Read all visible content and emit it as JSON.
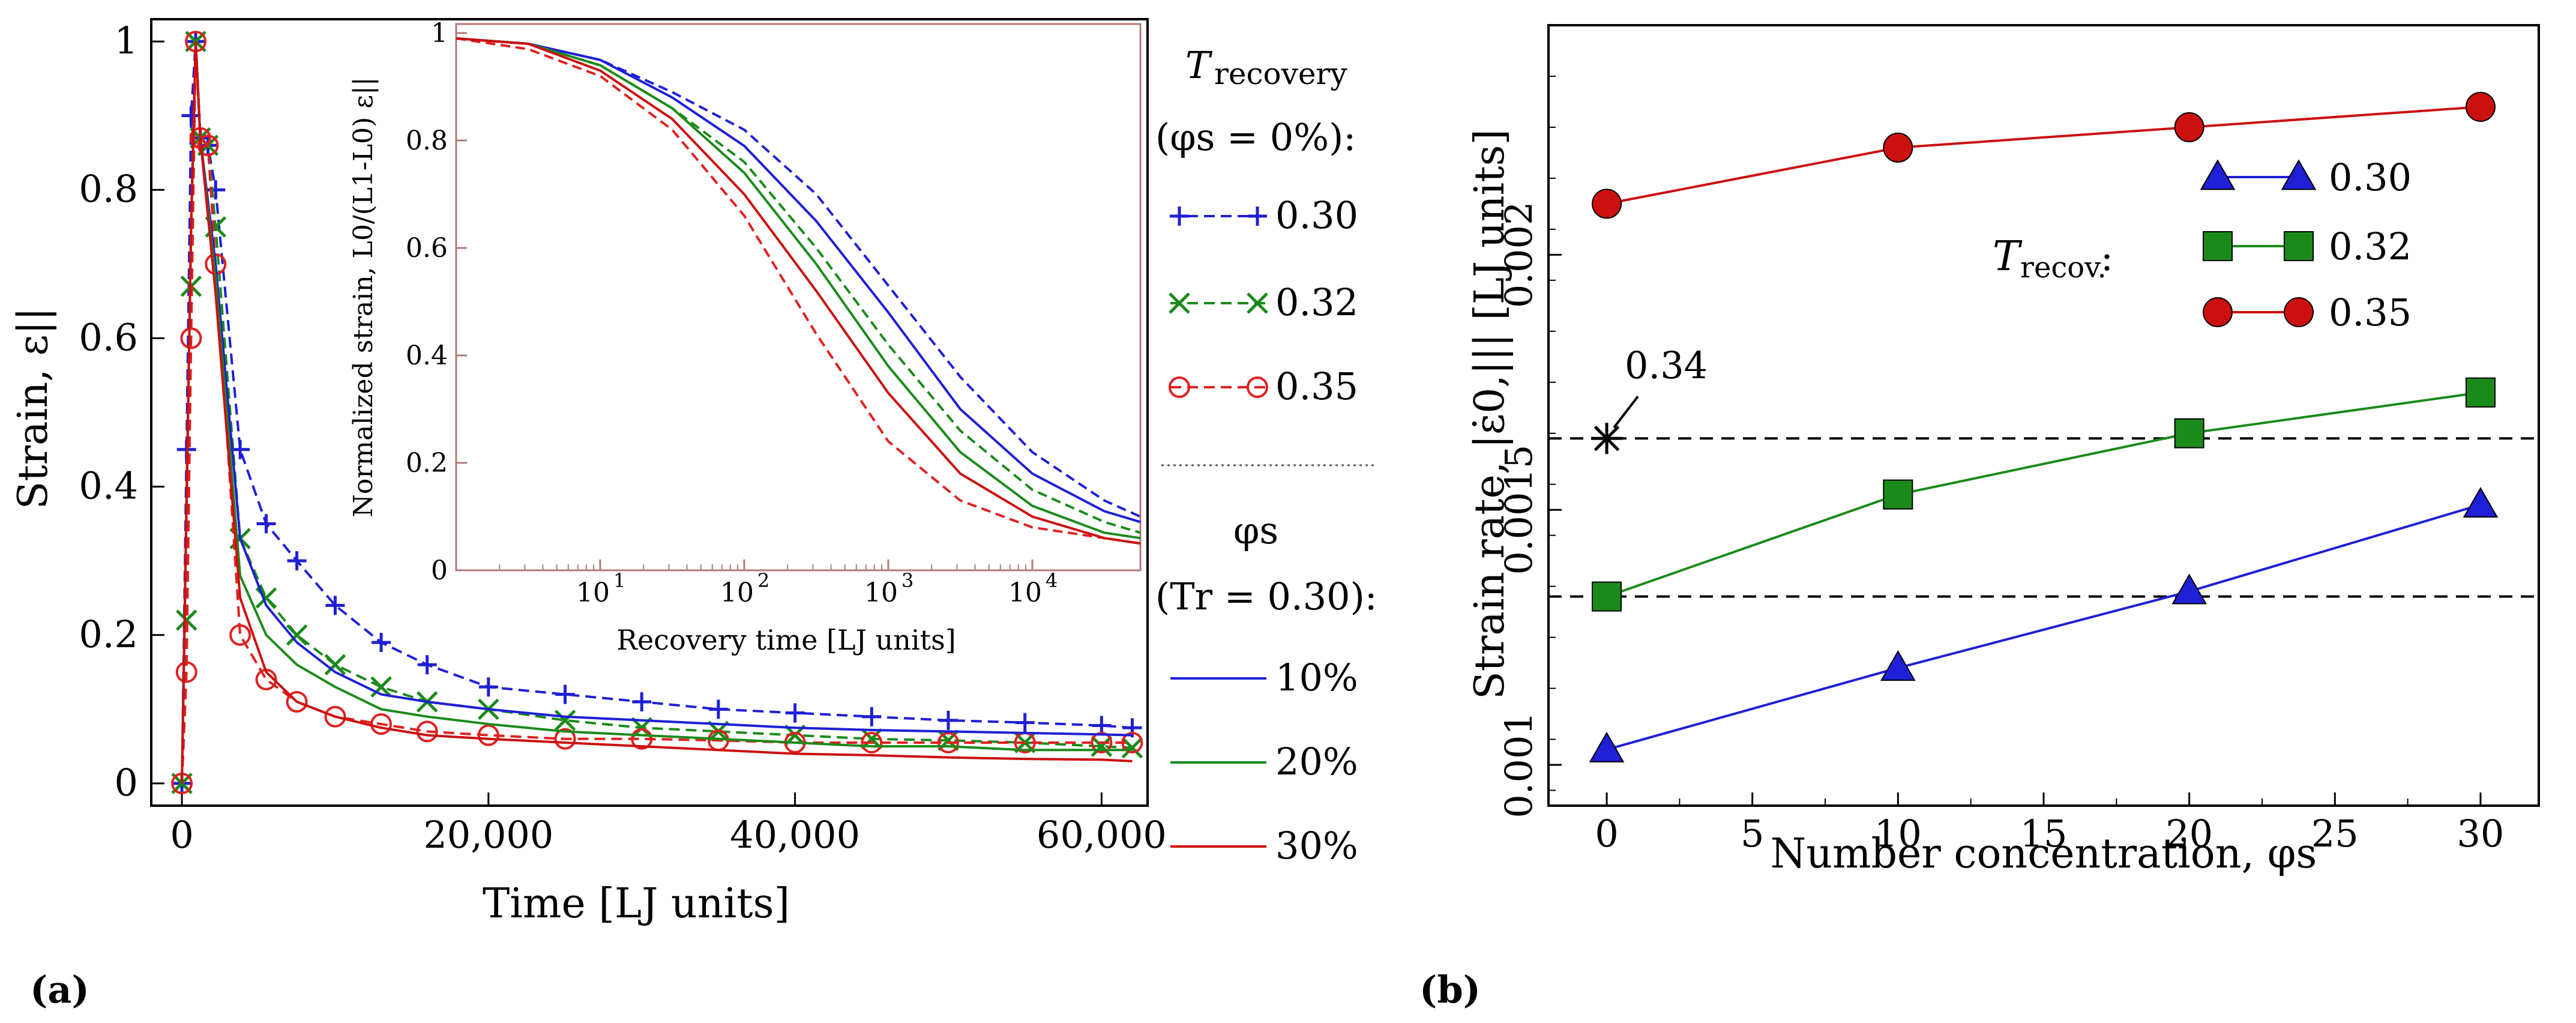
{
  "figure": {
    "panel_a_label": "(a)",
    "panel_b_label": "(b)"
  },
  "chart_data": [
    {
      "id": "panel-a-main",
      "type": "line",
      "xlabel": "Time [LJ units]",
      "ylabel": "Strain, ε||",
      "xlim": [
        -2000,
        63000
      ],
      "ylim": [
        -0.03,
        1.03
      ],
      "xticks": [
        0,
        20000,
        40000,
        60000
      ],
      "xtick_labels": [
        "0",
        "20,000",
        "40,000",
        "60,000"
      ],
      "yticks": [
        0,
        0.2,
        0.4,
        0.6,
        0.8,
        1
      ],
      "ytick_labels": [
        "0",
        "0.2",
        "0.4",
        "0.6",
        "0.8",
        "1"
      ],
      "legend": {
        "title_T": "T",
        "title_T_sub": "recovery",
        "title_phi_line": "(φs = 0%):",
        "phi_title": "φs",
        "phi_sub_line": "(Tr = 0.30):",
        "entries": [
          "0.30",
          "0.32",
          "0.35",
          "10%",
          "20%",
          "30%"
        ]
      },
      "series": [
        {
          "name": "0.30",
          "group": "T_recovery (φs = 0%)",
          "color": "#1f1fd6",
          "dash": true,
          "marker": "plus",
          "x": [
            0,
            300,
            600,
            900,
            1200,
            1700,
            2200,
            3800,
            5500,
            7500,
            10000,
            13000,
            16000,
            20000,
            25000,
            30000,
            35000,
            40000,
            45000,
            50000,
            55000,
            60000,
            62000
          ],
          "y": [
            0,
            0.45,
            0.9,
            1.0,
            0.87,
            0.86,
            0.8,
            0.45,
            0.35,
            0.3,
            0.24,
            0.19,
            0.16,
            0.13,
            0.12,
            0.11,
            0.1,
            0.095,
            0.09,
            0.085,
            0.082,
            0.078,
            0.075
          ]
        },
        {
          "name": "0.32",
          "group": "T_recovery (φs = 0%)",
          "color": "#1a8a1a",
          "dash": true,
          "marker": "x",
          "x": [
            0,
            300,
            600,
            900,
            1200,
            1700,
            2200,
            3800,
            5500,
            7500,
            10000,
            13000,
            16000,
            20000,
            25000,
            30000,
            35000,
            40000,
            45000,
            50000,
            55000,
            60000,
            62000
          ],
          "y": [
            0,
            0.22,
            0.67,
            1.0,
            0.87,
            0.86,
            0.75,
            0.33,
            0.25,
            0.2,
            0.16,
            0.13,
            0.11,
            0.1,
            0.085,
            0.075,
            0.07,
            0.065,
            0.06,
            0.058,
            0.055,
            0.05,
            0.048
          ]
        },
        {
          "name": "0.35",
          "group": "T_recovery (φs = 0%)",
          "color": "#e02020",
          "dash": true,
          "marker": "circle",
          "x": [
            0,
            300,
            600,
            900,
            1200,
            1700,
            2200,
            3800,
            5500,
            7500,
            10000,
            13000,
            16000,
            20000,
            25000,
            30000,
            35000,
            40000,
            45000,
            50000,
            55000,
            60000,
            62000
          ],
          "y": [
            0,
            0.15,
            0.6,
            1.0,
            0.87,
            0.86,
            0.7,
            0.2,
            0.14,
            0.11,
            0.09,
            0.08,
            0.07,
            0.065,
            0.06,
            0.06,
            0.058,
            0.055,
            0.055,
            0.055,
            0.055,
            0.055,
            0.055
          ]
        },
        {
          "name": "10%",
          "group": "φs (Tr = 0.30)",
          "color": "#1f1fd6",
          "dash": false,
          "marker": "none",
          "x": [
            0,
            600,
            900,
            1200,
            2200,
            3800,
            5500,
            7500,
            10000,
            13000,
            16000,
            20000,
            25000,
            30000,
            35000,
            40000,
            45000,
            50000,
            55000,
            60000,
            62000
          ],
          "y": [
            0,
            0.75,
            1.0,
            0.87,
            0.7,
            0.33,
            0.24,
            0.19,
            0.15,
            0.12,
            0.11,
            0.1,
            0.09,
            0.085,
            0.08,
            0.075,
            0.072,
            0.07,
            0.068,
            0.066,
            0.065
          ]
        },
        {
          "name": "20%",
          "group": "φs (Tr = 0.30)",
          "color": "#1a8a1a",
          "dash": false,
          "marker": "none",
          "x": [
            0,
            600,
            900,
            1200,
            2200,
            3800,
            5500,
            7500,
            10000,
            13000,
            16000,
            20000,
            25000,
            30000,
            35000,
            40000,
            45000,
            50000,
            55000,
            60000,
            62000
          ],
          "y": [
            0,
            0.75,
            1.0,
            0.87,
            0.68,
            0.28,
            0.2,
            0.16,
            0.13,
            0.1,
            0.09,
            0.08,
            0.07,
            0.065,
            0.06,
            0.055,
            0.05,
            0.05,
            0.045,
            0.045,
            0.045
          ]
        },
        {
          "name": "30%",
          "group": "φs (Tr = 0.30)",
          "color": "#cc1010",
          "dash": false,
          "marker": "none",
          "x": [
            0,
            600,
            900,
            1200,
            2200,
            3800,
            5500,
            7500,
            10000,
            13000,
            16000,
            20000,
            25000,
            30000,
            35000,
            40000,
            45000,
            50000,
            55000,
            60000,
            62000
          ],
          "y": [
            0,
            0.75,
            1.0,
            0.87,
            0.66,
            0.25,
            0.15,
            0.11,
            0.09,
            0.075,
            0.065,
            0.06,
            0.055,
            0.05,
            0.045,
            0.04,
            0.038,
            0.035,
            0.033,
            0.032,
            0.03
          ]
        }
      ]
    },
    {
      "id": "panel-a-inset",
      "type": "line",
      "xscale": "log",
      "xlabel": "Recovery time [LJ units]",
      "ylabel": "Normalized strain, L0/(L1-L0) ε||",
      "xlim_log10": [
        0,
        4.75
      ],
      "ylim": [
        0,
        1.0
      ],
      "xtick_labels": [
        "10",
        "10",
        "10",
        "10"
      ],
      "xtick_exponents": [
        "1",
        "2",
        "3",
        "4"
      ],
      "yticks": [
        0,
        0.2,
        0.4,
        0.6,
        0.8,
        1
      ],
      "ytick_labels": [
        "0",
        "0.2",
        "0.4",
        "0.6",
        "0.8",
        "1"
      ],
      "series": [
        {
          "name": "0.30",
          "color": "#1f1fd6",
          "dash": true,
          "log10x": [
            0,
            0.5,
            1,
            1.5,
            2,
            2.5,
            3,
            3.5,
            4,
            4.5,
            4.75
          ],
          "y": [
            0.99,
            0.98,
            0.95,
            0.89,
            0.82,
            0.7,
            0.53,
            0.36,
            0.22,
            0.13,
            0.1
          ]
        },
        {
          "name": "0.32",
          "color": "#1a8a1a",
          "dash": true,
          "log10x": [
            0,
            0.5,
            1,
            1.5,
            2,
            2.5,
            3,
            3.5,
            4,
            4.5,
            4.75
          ],
          "y": [
            0.99,
            0.98,
            0.94,
            0.86,
            0.76,
            0.6,
            0.42,
            0.26,
            0.15,
            0.09,
            0.07
          ]
        },
        {
          "name": "0.35",
          "color": "#e02020",
          "dash": true,
          "log10x": [
            0,
            0.5,
            1,
            1.5,
            2,
            2.5,
            3,
            3.5,
            4,
            4.5,
            4.75
          ],
          "y": [
            0.99,
            0.97,
            0.92,
            0.82,
            0.66,
            0.44,
            0.24,
            0.13,
            0.08,
            0.06,
            0.05
          ]
        },
        {
          "name": "10%",
          "color": "#1f1fd6",
          "dash": false,
          "log10x": [
            0,
            0.5,
            1,
            1.5,
            2,
            2.5,
            3,
            3.5,
            4,
            4.5,
            4.75
          ],
          "y": [
            0.99,
            0.98,
            0.95,
            0.88,
            0.79,
            0.65,
            0.48,
            0.3,
            0.18,
            0.11,
            0.09
          ]
        },
        {
          "name": "20%",
          "color": "#1a8a1a",
          "dash": false,
          "log10x": [
            0,
            0.5,
            1,
            1.5,
            2,
            2.5,
            3,
            3.5,
            4,
            4.5,
            4.75
          ],
          "y": [
            0.99,
            0.98,
            0.94,
            0.86,
            0.74,
            0.57,
            0.38,
            0.22,
            0.12,
            0.07,
            0.06
          ]
        },
        {
          "name": "30%",
          "color": "#cc1010",
          "dash": false,
          "log10x": [
            0,
            0.5,
            1,
            1.5,
            2,
            2.5,
            3,
            3.5,
            4,
            4.5,
            4.75
          ],
          "y": [
            0.99,
            0.98,
            0.93,
            0.84,
            0.7,
            0.52,
            0.33,
            0.18,
            0.1,
            0.06,
            0.05
          ]
        }
      ]
    },
    {
      "id": "panel-b",
      "type": "line",
      "xlabel": "Number concentration, φs",
      "ylabel": "Strain rate, |ε̇0,||| [LJ units]",
      "xlim": [
        -2,
        32
      ],
      "ylim": [
        0.00092,
        0.00245
      ],
      "xticks": [
        0,
        5,
        10,
        15,
        20,
        25,
        30
      ],
      "xtick_labels": [
        "0",
        "5",
        "10",
        "15",
        "20",
        "25",
        "30"
      ],
      "yticks": [
        0.001,
        0.0015,
        0.002
      ],
      "ytick_labels": [
        "0.001",
        "0.0015",
        "0.002"
      ],
      "legend_title": "Trecov.",
      "legend_title_T": "T",
      "legend_title_sub": "recov.",
      "legend_colon": ":",
      "series": [
        {
          "name": "0.30",
          "color": "#1f1fd6",
          "marker": "triangle",
          "x": [
            0,
            10,
            20,
            30
          ],
          "y": [
            0.00103,
            0.00119,
            0.00134,
            0.00151
          ]
        },
        {
          "name": "0.32",
          "color": "#1a8a1a",
          "marker": "square",
          "x": [
            0,
            10,
            20,
            30
          ],
          "y": [
            0.00133,
            0.00153,
            0.00165,
            0.00173
          ]
        },
        {
          "name": "0.35",
          "color": "#cc1010",
          "marker": "circle",
          "x": [
            0,
            10,
            20,
            30
          ],
          "y": [
            0.0021,
            0.00221,
            0.00225,
            0.00229
          ]
        }
      ],
      "reference_lines": [
        0.00164,
        0.00133
      ],
      "annotation": {
        "label": "0.34",
        "x": 0,
        "y": 0.00164,
        "marker": "asterisk"
      }
    }
  ]
}
